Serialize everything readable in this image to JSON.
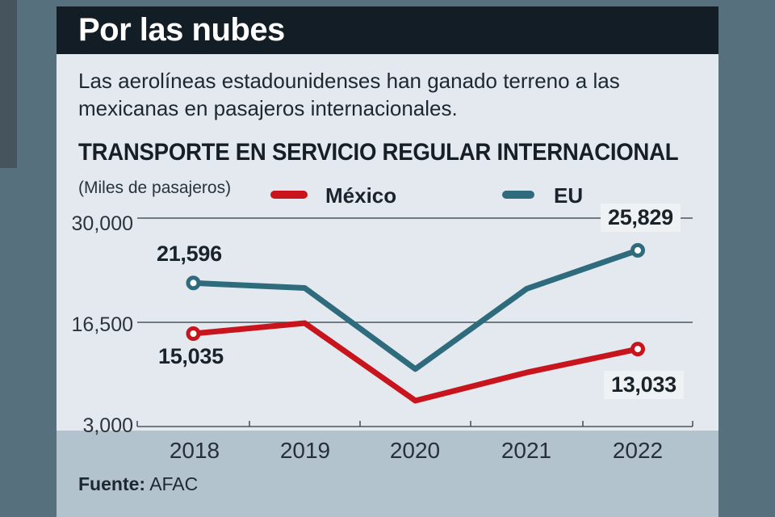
{
  "header": {
    "title": "Por las nubes"
  },
  "intro": {
    "text": "Las aerolíneas estadounidenses han ganado terreno a las mexicanas en pasajeros internacionales."
  },
  "chart": {
    "title": "TRANSPORTE EN SERVICIO REGULAR INTERNACIONAL",
    "unit_label": "(Miles de pasajeros)"
  },
  "chart_data": {
    "type": "line",
    "categories": [
      "2018",
      "2019",
      "2020",
      "2021",
      "2022"
    ],
    "series": [
      {
        "name": "México",
        "color": "#c8141c",
        "values": [
          15035,
          16400,
          6350,
          10000,
          13033
        ]
      },
      {
        "name": "EU",
        "color": "#2e6b7d",
        "values": [
          21596,
          20950,
          10450,
          20850,
          25829
        ]
      }
    ],
    "y_ticks": [
      30000,
      16500,
      3000
    ],
    "y_tick_labels": [
      "30,000",
      "16,500",
      "3,000"
    ],
    "ylim": [
      3000,
      30000
    ],
    "grid": "horizontal",
    "legend_position": "top",
    "point_labels": [
      {
        "series": "EU",
        "category": "2018",
        "text": "21,596"
      },
      {
        "series": "EU",
        "category": "2022",
        "text": "25,829"
      },
      {
        "series": "México",
        "category": "2018",
        "text": "15,035"
      },
      {
        "series": "México",
        "category": "2022",
        "text": "13,033"
      }
    ],
    "title": "TRANSPORTE EN SERVICIO REGULAR INTERNACIONAL",
    "ylabel": "Miles de pasajeros"
  },
  "colors": {
    "page_bg": "#57707e",
    "header_bg": "#131d25",
    "card_bg": "#e3e9ee",
    "footer_bg": "#b2c3ce",
    "grid": "#4b555d",
    "mexico_red": "#c8141c",
    "eu_teal": "#2e6b7d"
  },
  "footer": {
    "source_label": "Fuente:",
    "source_value": "AFAC"
  }
}
